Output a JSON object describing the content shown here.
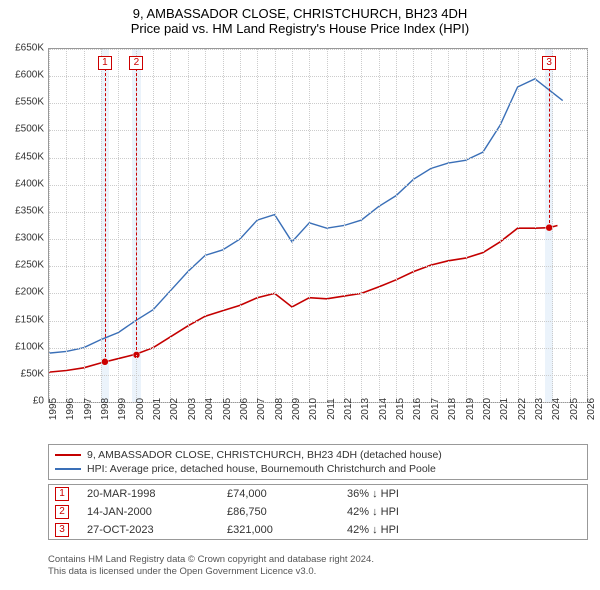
{
  "title": {
    "line1": "9, AMBASSADOR CLOSE, CHRISTCHURCH, BH23 4DH",
    "line2": "Price paid vs. HM Land Registry's House Price Index (HPI)"
  },
  "chart": {
    "type": "line",
    "background_color": "#ffffff",
    "grid_color": "#cccccc",
    "axis_color": "#999999",
    "x": {
      "min": 1995,
      "max": 2026,
      "ticks": [
        1995,
        1996,
        1997,
        1998,
        1999,
        2000,
        2001,
        2002,
        2003,
        2004,
        2005,
        2006,
        2007,
        2008,
        2009,
        2010,
        2011,
        2012,
        2013,
        2014,
        2015,
        2016,
        2017,
        2018,
        2019,
        2020,
        2021,
        2022,
        2023,
        2024,
        2025,
        2026
      ]
    },
    "y": {
      "min": 0,
      "max": 650000,
      "tick_step": 50000,
      "ticks": [
        0,
        50000,
        100000,
        150000,
        200000,
        250000,
        300000,
        350000,
        400000,
        450000,
        500000,
        550000,
        600000,
        650000
      ],
      "tick_labels": [
        "£0",
        "£50K",
        "£100K",
        "£150K",
        "£200K",
        "£250K",
        "£300K",
        "£350K",
        "£400K",
        "£450K",
        "£500K",
        "£550K",
        "£600K",
        "£650K"
      ]
    },
    "series": [
      {
        "id": "property",
        "label": "9, AMBASSADOR CLOSE, CHRISTCHURCH, BH23 4DH (detached house)",
        "color": "#c40000",
        "line_width": 1.6,
        "x": [
          1995,
          1996,
          1997,
          1998,
          1999,
          2000,
          2001,
          2002,
          2003,
          2004,
          2005,
          2006,
          2007,
          2008,
          2009,
          2010,
          2011,
          2012,
          2013,
          2014,
          2015,
          2016,
          2017,
          2018,
          2019,
          2020,
          2021,
          2022,
          2023,
          2023.82,
          2024.3
        ],
        "y": [
          55000,
          58000,
          63000,
          72000,
          80000,
          88000,
          100000,
          120000,
          140000,
          158000,
          168000,
          178000,
          192000,
          200000,
          175000,
          192000,
          190000,
          195000,
          200000,
          212000,
          225000,
          240000,
          252000,
          260000,
          265000,
          275000,
          295000,
          320000,
          320000,
          321000,
          325000
        ]
      },
      {
        "id": "hpi",
        "label": "HPI: Average price, detached house, Bournemouth Christchurch and Poole",
        "color": "#3a6fb7",
        "line_width": 1.4,
        "x": [
          1995,
          1996,
          1997,
          1998,
          1999,
          2000,
          2001,
          2002,
          2003,
          2004,
          2005,
          2006,
          2007,
          2008,
          2009,
          2010,
          2011,
          2012,
          2013,
          2014,
          2015,
          2016,
          2017,
          2018,
          2019,
          2020,
          2021,
          2022,
          2023,
          2024,
          2024.6
        ],
        "y": [
          90000,
          93000,
          100000,
          115000,
          128000,
          150000,
          170000,
          205000,
          240000,
          270000,
          280000,
          300000,
          335000,
          345000,
          295000,
          330000,
          320000,
          325000,
          335000,
          360000,
          380000,
          410000,
          430000,
          440000,
          445000,
          460000,
          510000,
          580000,
          595000,
          570000,
          555000
        ]
      }
    ],
    "sales": [
      {
        "idx": "1",
        "year": 1998.22,
        "y_on_property": 74000,
        "band_color": "#b8d4f0"
      },
      {
        "idx": "2",
        "year": 2000.04,
        "y_on_property": 86750,
        "band_color": "#b8d4f0"
      },
      {
        "idx": "3",
        "year": 2023.82,
        "y_on_property": 321000,
        "band_color": "#b8d4f0"
      }
    ],
    "sale_band_width_years": 0.5,
    "sale_marker_top_y": 625000
  },
  "legend": {
    "items": [
      {
        "series": "property"
      },
      {
        "series": "hpi"
      }
    ]
  },
  "sales_table": {
    "rows": [
      {
        "idx": "1",
        "date": "20-MAR-1998",
        "price": "£74,000",
        "diff": "36% ↓ HPI"
      },
      {
        "idx": "2",
        "date": "14-JAN-2000",
        "price": "£86,750",
        "diff": "42% ↓ HPI"
      },
      {
        "idx": "3",
        "date": "27-OCT-2023",
        "price": "£321,000",
        "diff": "42% ↓ HPI"
      }
    ]
  },
  "footer": {
    "line1": "Contains HM Land Registry data © Crown copyright and database right 2024.",
    "line2": "This data is licensed under the Open Government Licence v3.0."
  }
}
